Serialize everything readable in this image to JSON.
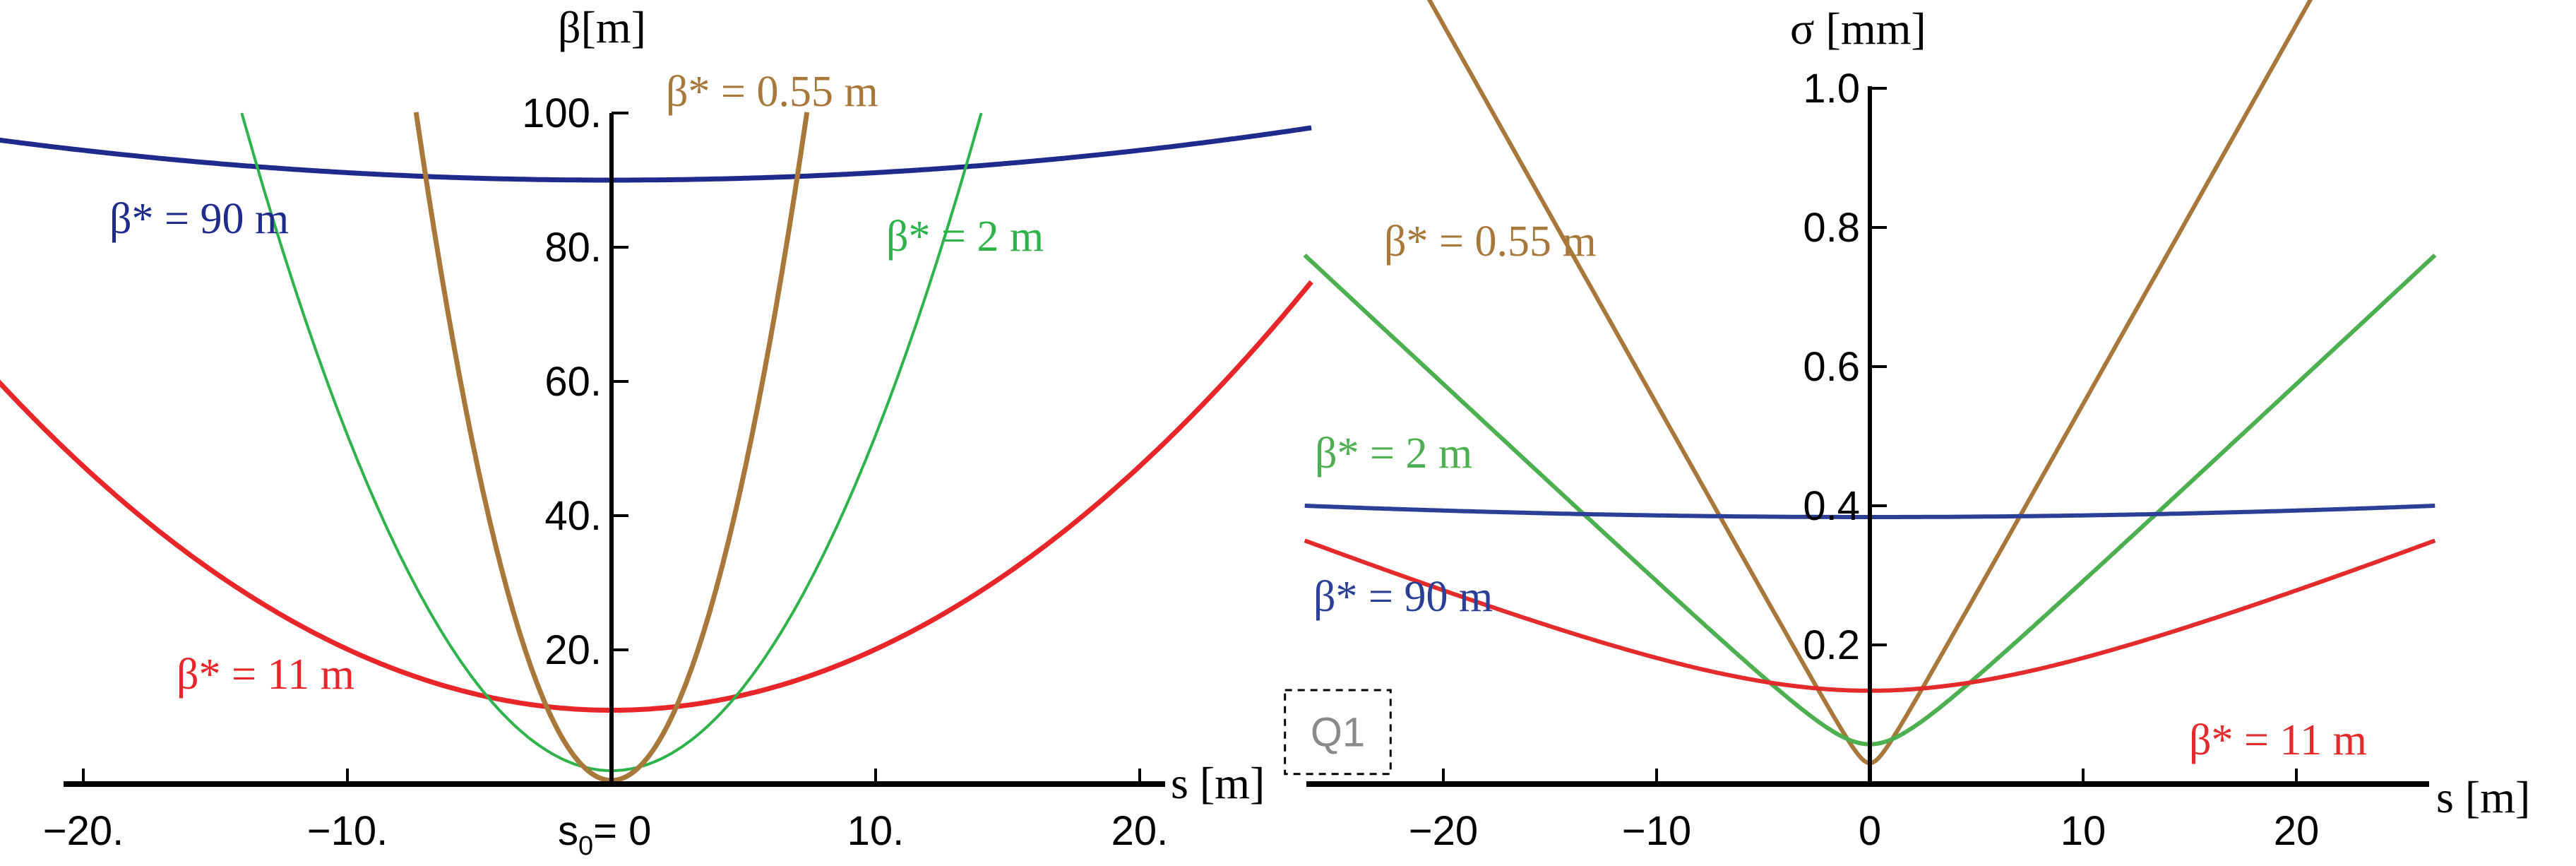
{
  "chart_data": [
    {
      "type": "line",
      "xlabel": "s [m]",
      "ylabel": "β[m]",
      "xlim": [
        -26,
        26
      ],
      "ylim": [
        0,
        100
      ],
      "x_ticks": [
        -20,
        -10,
        10,
        20
      ],
      "x_tick_labels": [
        "−20.",
        "−10.",
        "10.",
        "20."
      ],
      "origin_label": "s",
      "origin_label_sub": "0",
      "origin_label_rest": "= 0",
      "y_ticks": [
        20,
        40,
        60,
        80,
        100
      ],
      "y_tick_labels": [
        "20.",
        "40.",
        "60.",
        "80.",
        "100."
      ],
      "quadrupoles": [
        {
          "label": "Q1",
          "x_range": [
            -29.5,
            -25.5
          ],
          "y_range": [
            1.5,
            14
          ]
        },
        {
          "label": "Q1",
          "x_range": [
            25.5,
            29.5
          ],
          "y_range": [
            1.5,
            14
          ]
        }
      ],
      "series": [
        {
          "name": "β* = 90 m",
          "beta_star": 90,
          "color": "#1f2a8c",
          "x_range": [
            -26.5,
            26.5
          ]
        },
        {
          "name": "β* = 11 m",
          "beta_star": 11,
          "color": "#e8262a",
          "x_range": [
            -26.5,
            26.5
          ]
        },
        {
          "name": "β* = 2 m",
          "beta_star": 2,
          "color": "#2db34a",
          "x_range": [
            -14,
            14
          ]
        },
        {
          "name": "β* = 0.55 m",
          "beta_star": 0.55,
          "color": "#a8773a",
          "x_range": [
            -7.4,
            7.4
          ]
        }
      ]
    },
    {
      "type": "line",
      "xlabel": "s [m]",
      "ylabel": "σ [mm]",
      "xlim": [
        -26,
        26
      ],
      "ylim": [
        0,
        1.0
      ],
      "x_ticks": [
        -20,
        -10,
        0,
        10,
        20
      ],
      "x_tick_labels": [
        "−20",
        "−10",
        "0",
        "10",
        "20"
      ],
      "y_ticks": [
        0.2,
        0.4,
        0.6,
        0.8,
        1.0
      ],
      "y_tick_labels": [
        "0.2",
        "0.4",
        "0.6",
        "0.8",
        "1.0"
      ],
      "series": [
        {
          "name": "β* = 0.55 m",
          "beta_star": 0.55,
          "color": "#a8773a"
        },
        {
          "name": "β* = 2 m",
          "beta_star": 2,
          "color": "#4caf50"
        },
        {
          "name": "β* = 90 m",
          "beta_star": 90,
          "color": "#2b3f96"
        },
        {
          "name": "β* = 11 m",
          "beta_star": 11,
          "color": "#e32b2b"
        }
      ]
    }
  ]
}
